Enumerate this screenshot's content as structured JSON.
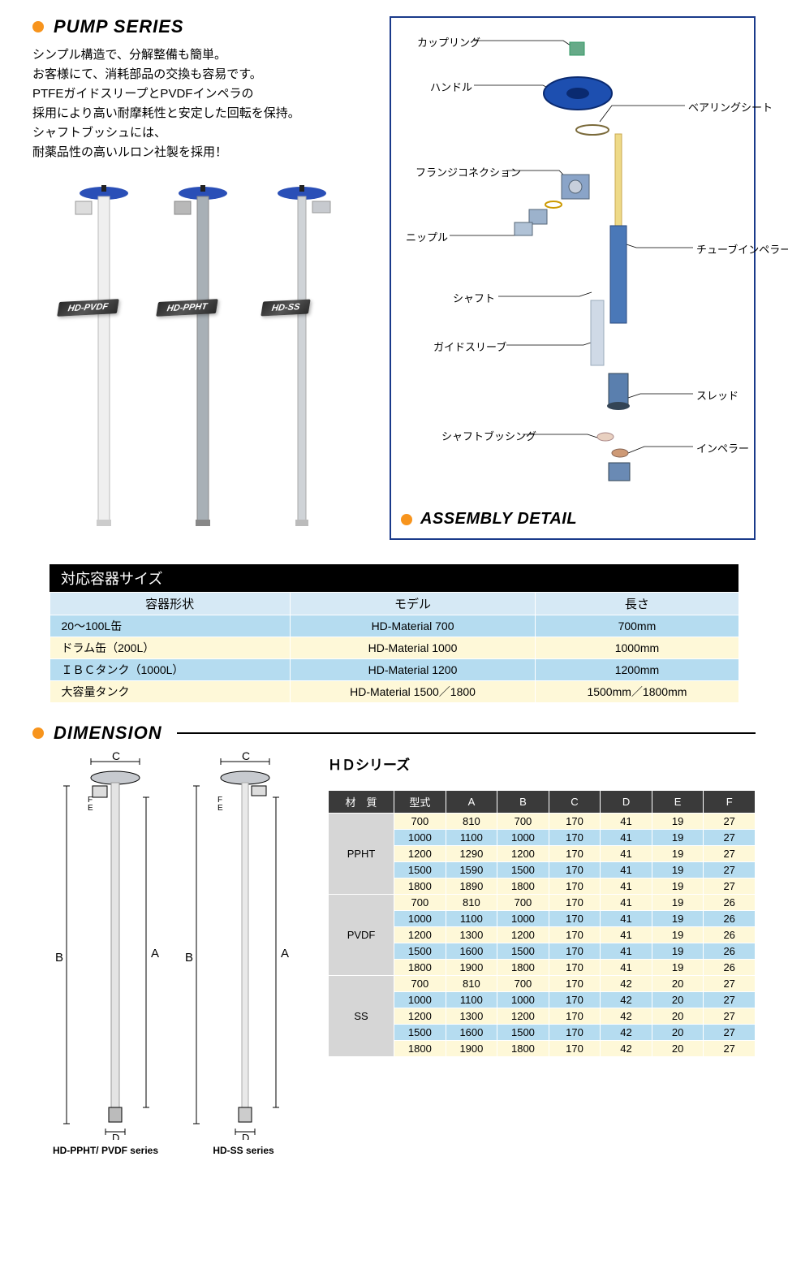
{
  "pump_series": {
    "title": "PUMP SERIES",
    "desc_l1": "シンプル構造で、分解整備も簡単。",
    "desc_l2": "お客様にて、消耗部品の交換も容易です。",
    "desc_l3": "PTFEガイドスリープとPVDFインペラの",
    "desc_l4": "採用により高い耐摩耗性と安定した回転を保持。",
    "desc_l5": "シャフトブッシュには、",
    "desc_l6": "耐薬品性の高いルロン社製を採用！",
    "pump_labels": {
      "pvdf": "HD-PVDF",
      "ppht": "HD-PPHT",
      "ss": "HD-SS"
    },
    "pump_colors": {
      "pvdf_body": "#efefef",
      "pvdf_head": "#2a4fb7",
      "ppht_body": "#a8b0b6",
      "ppht_head": "#2a4fb7",
      "ss_body": "#cfd3d7",
      "ss_head": "#2a4fb7"
    }
  },
  "assembly": {
    "title": "ASSEMBLY DETAIL",
    "labels": {
      "coupling": "カップリング",
      "handle": "ハンドル",
      "bearing_seat": "ベアリングシート",
      "flange_conn": "フランジコネクション",
      "nipple": "ニップル",
      "tube_impeller": "チューブインペラー",
      "shaft": "シャフト",
      "guide_sleeve": "ガイドスリーブ",
      "thread": "スレッド",
      "shaft_bushing": "シャフトブッシング",
      "impeller": "インペラー"
    },
    "colors": {
      "handle": "#1d4fb0",
      "tube": "#4a78b8",
      "shaft": "#eeda88",
      "sleeve": "#8aa4c8",
      "frame": "#1a3a8a"
    }
  },
  "container_table": {
    "title": "対応容器サイズ",
    "headers": {
      "shape": "容器形状",
      "model": "モデル",
      "length": "長さ"
    },
    "rows": [
      {
        "shape": "20～100L缶",
        "model": "HD-Material 700",
        "length": "700mm",
        "cls": "row-blue"
      },
      {
        "shape": "ドラム缶（200L）",
        "model": "HD-Material 1000",
        "length": "1000mm",
        "cls": "row-cream"
      },
      {
        "shape": "ＩＢＣタンク（1000L）",
        "model": "HD-Material 1200",
        "length": "1200mm",
        "cls": "row-blue"
      },
      {
        "shape": "大容量タンク",
        "model": "HD-Material 1500／1800",
        "length": "1500mm／1800mm",
        "cls": "row-cream"
      }
    ]
  },
  "dimension": {
    "title": "DIMENSION",
    "hd_title": "ＨＤシリーズ",
    "draw_label_left": "HD-PPHT/ PVDF series",
    "draw_label_right": "HD-SS series",
    "letters": {
      "a": "A",
      "b": "B",
      "c": "C",
      "d": "D",
      "e": "E",
      "f": "F"
    },
    "headers": [
      "材　質",
      "型式",
      "A",
      "B",
      "C",
      "D",
      "E",
      "F"
    ],
    "groups": [
      {
        "material": "PPHT",
        "rows": [
          [
            "700",
            "810",
            "700",
            "170",
            "41",
            "19",
            "27"
          ],
          [
            "1000",
            "1100",
            "1000",
            "170",
            "41",
            "19",
            "27"
          ],
          [
            "1200",
            "1290",
            "1200",
            "170",
            "41",
            "19",
            "27"
          ],
          [
            "1500",
            "1590",
            "1500",
            "170",
            "41",
            "19",
            "27"
          ],
          [
            "1800",
            "1890",
            "1800",
            "170",
            "41",
            "19",
            "27"
          ]
        ]
      },
      {
        "material": "PVDF",
        "rows": [
          [
            "700",
            "810",
            "700",
            "170",
            "41",
            "19",
            "26"
          ],
          [
            "1000",
            "1100",
            "1000",
            "170",
            "41",
            "19",
            "26"
          ],
          [
            "1200",
            "1300",
            "1200",
            "170",
            "41",
            "19",
            "26"
          ],
          [
            "1500",
            "1600",
            "1500",
            "170",
            "41",
            "19",
            "26"
          ],
          [
            "1800",
            "1900",
            "1800",
            "170",
            "41",
            "19",
            "26"
          ]
        ]
      },
      {
        "material": "SS",
        "rows": [
          [
            "700",
            "810",
            "700",
            "170",
            "42",
            "20",
            "27"
          ],
          [
            "1000",
            "1100",
            "1000",
            "170",
            "42",
            "20",
            "27"
          ],
          [
            "1200",
            "1300",
            "1200",
            "170",
            "42",
            "20",
            "27"
          ],
          [
            "1500",
            "1600",
            "1500",
            "170",
            "42",
            "20",
            "27"
          ],
          [
            "1800",
            "1900",
            "1800",
            "170",
            "42",
            "20",
            "27"
          ]
        ]
      }
    ],
    "row_classes": [
      "dr-cream",
      "dr-blue",
      "dr-cream",
      "dr-blue",
      "dr-cream"
    ]
  },
  "colors": {
    "bullet": "#f7941d"
  }
}
